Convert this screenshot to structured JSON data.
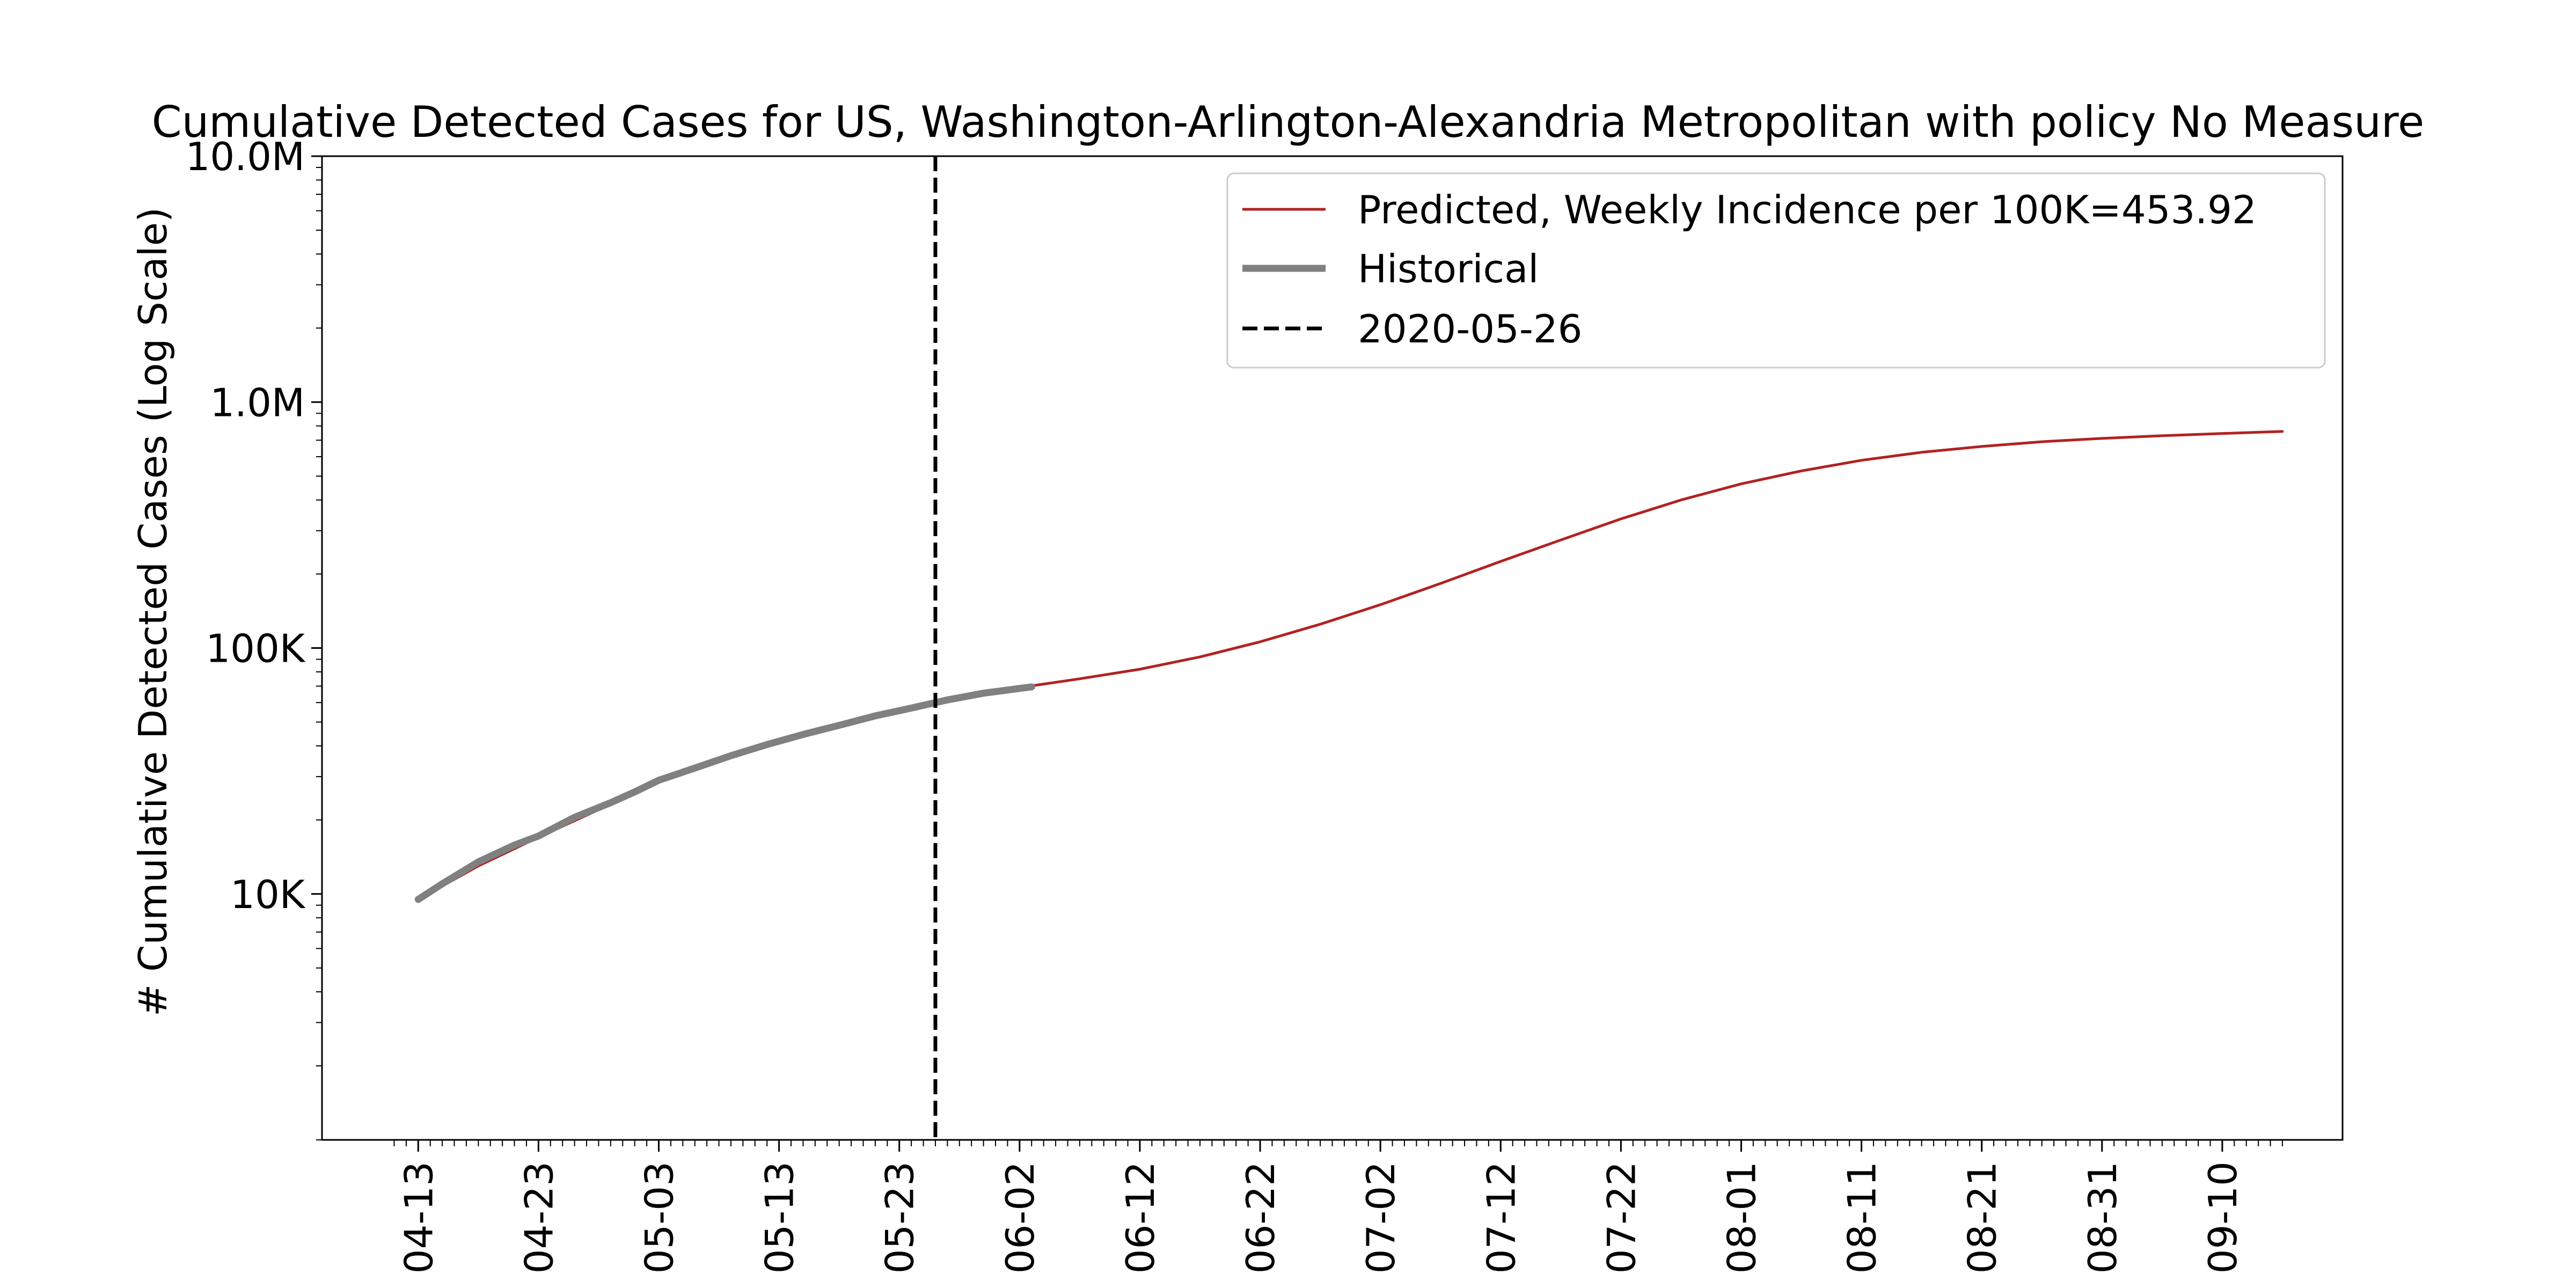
{
  "chart_data": {
    "type": "line",
    "title": "Cumulative Detected Cases for US, Washington-Arlington-Alexandria Metropolitan with policy No Measure",
    "xlabel": "",
    "ylabel": "# Cumulative Detected Cases (Log Scale)",
    "y_scale": "log",
    "ylim": [
      1000,
      10000000
    ],
    "xlim": [
      "2020-04-05",
      "2020-09-20"
    ],
    "y_ticks": [
      {
        "value": 10000,
        "label": "10K"
      },
      {
        "value": 100000,
        "label": "100K"
      },
      {
        "value": 1000000,
        "label": "1.0M"
      },
      {
        "value": 10000000,
        "label": "10.0M"
      }
    ],
    "x_ticks": [
      "2020-04-13",
      "2020-04-23",
      "2020-05-03",
      "2020-05-13",
      "2020-05-23",
      "2020-06-02",
      "2020-06-12",
      "2020-06-22",
      "2020-07-02",
      "2020-07-12",
      "2020-07-22",
      "2020-08-01",
      "2020-08-11",
      "2020-08-21",
      "2020-08-31",
      "2020-09-10"
    ],
    "x_tick_labels": [
      "04-13",
      "04-23",
      "05-03",
      "05-13",
      "05-23",
      "06-02",
      "06-12",
      "06-22",
      "07-02",
      "07-12",
      "07-22",
      "08-01",
      "08-11",
      "08-21",
      "08-31",
      "09-10"
    ],
    "vline": {
      "x": "2020-05-26",
      "label": "2020-05-26",
      "color": "#000000",
      "style": "dashed"
    },
    "legend_position": "top-right",
    "grid": false,
    "series": [
      {
        "name": "Predicted, Weekly Incidence per 100K=453.92",
        "color": "#b22222",
        "style": "thin",
        "x": [
          "2020-04-13",
          "2020-04-18",
          "2020-04-23",
          "2020-04-28",
          "2020-05-03",
          "2020-05-08",
          "2020-05-13",
          "2020-05-18",
          "2020-05-23",
          "2020-05-28",
          "2020-06-02",
          "2020-06-07",
          "2020-06-12",
          "2020-06-17",
          "2020-06-22",
          "2020-06-27",
          "2020-07-02",
          "2020-07-07",
          "2020-07-12",
          "2020-07-17",
          "2020-07-22",
          "2020-07-27",
          "2020-08-01",
          "2020-08-06",
          "2020-08-11",
          "2020-08-16",
          "2020-08-21",
          "2020-08-26",
          "2020-08-31",
          "2020-09-05",
          "2020-09-10",
          "2020-09-15"
        ],
        "y": [
          9500,
          13000,
          17000,
          22000,
          28500,
          35000,
          41000,
          48000,
          55000,
          63000,
          69000,
          75000,
          82000,
          92000,
          106000,
          125000,
          150000,
          183000,
          225000,
          275000,
          335000,
          400000,
          465000,
          525000,
          580000,
          625000,
          660000,
          690000,
          712000,
          730000,
          745000,
          760000
        ]
      },
      {
        "name": "Historical",
        "color": "#808080",
        "style": "thick",
        "x": [
          "2020-04-13",
          "2020-04-15",
          "2020-04-18",
          "2020-04-21",
          "2020-04-23",
          "2020-04-26",
          "2020-04-29",
          "2020-05-01",
          "2020-05-03",
          "2020-05-06",
          "2020-05-09",
          "2020-05-12",
          "2020-05-15",
          "2020-05-18",
          "2020-05-21",
          "2020-05-24",
          "2020-05-27",
          "2020-05-30",
          "2020-06-02",
          "2020-06-03"
        ],
        "y": [
          9500,
          11000,
          13500,
          15800,
          17200,
          20500,
          23500,
          26000,
          29000,
          32500,
          36500,
          40500,
          44500,
          48500,
          53000,
          57000,
          61500,
          65500,
          68500,
          69500
        ]
      }
    ]
  }
}
